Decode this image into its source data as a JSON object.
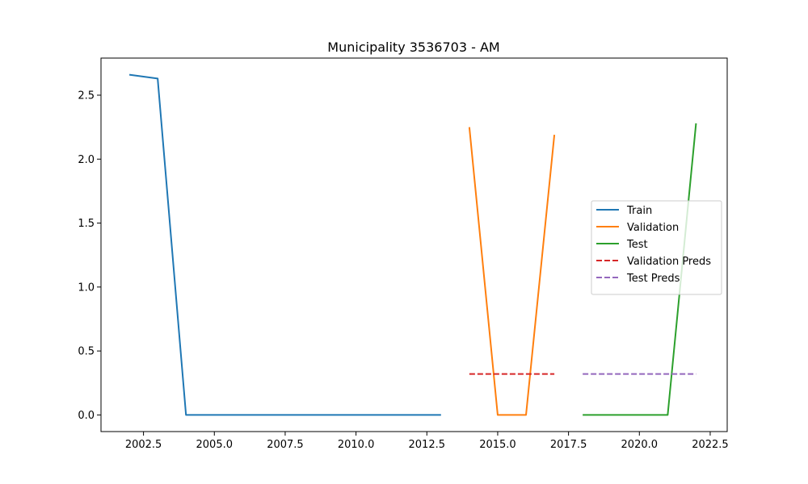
{
  "chart_data": {
    "type": "line",
    "title": "Municipality 3536703 - AM",
    "xlabel": "",
    "ylabel": "",
    "xlim": [
      2001.0,
      2023.1
    ],
    "ylim": [
      -0.13,
      2.79
    ],
    "xticks": [
      2002.5,
      2005.0,
      2007.5,
      2010.0,
      2012.5,
      2015.0,
      2017.5,
      2020.0,
      2022.5
    ],
    "xtick_labels": [
      "2002.5",
      "2005.0",
      "2007.5",
      "2010.0",
      "2012.5",
      "2015.0",
      "2017.5",
      "2020.0",
      "2022.5"
    ],
    "yticks": [
      0.0,
      0.5,
      1.0,
      1.5,
      2.0,
      2.5
    ],
    "ytick_labels": [
      "0.0",
      "0.5",
      "1.0",
      "1.5",
      "2.0",
      "2.5"
    ],
    "grid": false,
    "legend_position": "center-right",
    "series": [
      {
        "name": "Train",
        "color": "#1f77b4",
        "dash": "solid",
        "x": [
          2002,
          2003,
          2004,
          2005,
          2006,
          2007,
          2008,
          2009,
          2010,
          2011,
          2012,
          2013
        ],
        "y": [
          2.66,
          2.63,
          0,
          0,
          0,
          0,
          0,
          0,
          0,
          0,
          0,
          0
        ]
      },
      {
        "name": "Validation",
        "color": "#ff7f0e",
        "dash": "solid",
        "x": [
          2014,
          2015,
          2016,
          2017
        ],
        "y": [
          2.25,
          0,
          0,
          2.19
        ]
      },
      {
        "name": "Test",
        "color": "#2ca02c",
        "dash": "solid",
        "x": [
          2018,
          2019,
          2020,
          2021,
          2022
        ],
        "y": [
          0,
          0,
          0,
          0,
          2.28
        ]
      },
      {
        "name": "Validation Preds",
        "color": "#d62728",
        "dash": "dashed",
        "x": [
          2014,
          2015,
          2016,
          2017
        ],
        "y": [
          0.32,
          0.32,
          0.32,
          0.32
        ]
      },
      {
        "name": "Test Preds",
        "color": "#9467bd",
        "dash": "dashed",
        "x": [
          2018,
          2019,
          2020,
          2021,
          2022
        ],
        "y": [
          0.32,
          0.32,
          0.32,
          0.32,
          0.32
        ]
      }
    ]
  }
}
